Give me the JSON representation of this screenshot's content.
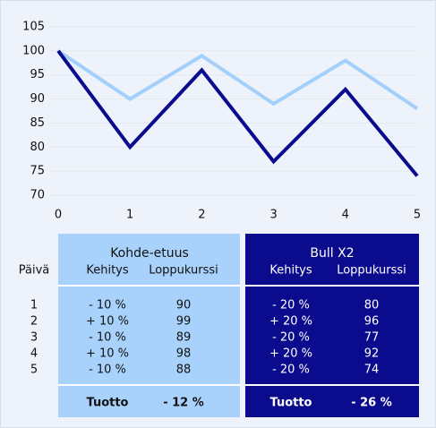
{
  "chart_data": {
    "type": "line",
    "x": [
      0,
      1,
      2,
      3,
      4,
      5
    ],
    "series": [
      {
        "name": "Kohde-etuus",
        "color": "#a3d0fa",
        "values": [
          100,
          90,
          99,
          89,
          98,
          88
        ]
      },
      {
        "name": "Bull X2",
        "color": "#0b0b8e",
        "values": [
          100,
          80,
          96,
          77,
          92,
          74
        ]
      }
    ],
    "xlim": [
      0,
      5
    ],
    "xticks": [
      0,
      1,
      2,
      3,
      4,
      5
    ],
    "ylim": [
      70,
      105
    ],
    "yticks": [
      70,
      75,
      80,
      85,
      90,
      95,
      100,
      105
    ],
    "grid": true
  },
  "table": {
    "day_header": "Päivä",
    "days": [
      1,
      2,
      3,
      4,
      5
    ],
    "groups": [
      {
        "name": "Kohde-etuus",
        "columns": [
          "Kehitys",
          "Loppukurssi"
        ],
        "rows": [
          [
            "- 10 %",
            90
          ],
          [
            "+ 10 %",
            99
          ],
          [
            "- 10 %",
            89
          ],
          [
            "+ 10 %",
            98
          ],
          [
            "- 10 %",
            88
          ]
        ],
        "total_label": "Tuotto",
        "total": "- 12 %"
      },
      {
        "name": "Bull X2",
        "columns": [
          "Kehitys",
          "Loppukurssi"
        ],
        "rows": [
          [
            "- 20 %",
            80
          ],
          [
            "+ 20 %",
            96
          ],
          [
            "- 20 %",
            77
          ],
          [
            "+ 20 %",
            92
          ],
          [
            "- 20 %",
            74
          ]
        ],
        "total_label": "Tuotto",
        "total": "- 26 %"
      }
    ]
  }
}
